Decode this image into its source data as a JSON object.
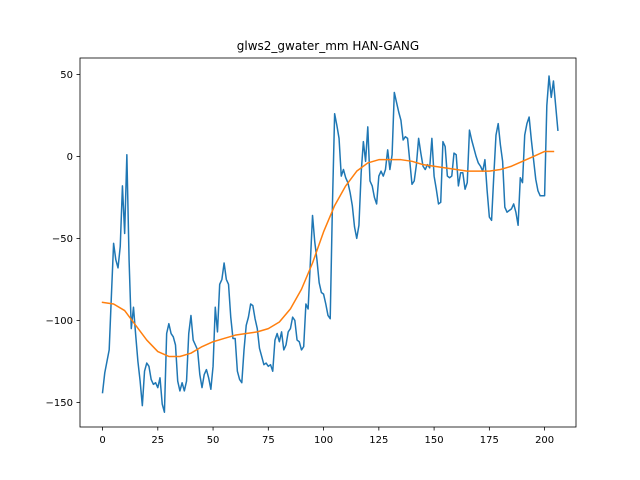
{
  "chart_data": {
    "type": "line",
    "title": "glws2_gwater_mm HAN-GANG",
    "xlabel": "",
    "ylabel": "",
    "xlim": [
      -10.2,
      214.2
    ],
    "ylim": [
      -165,
      60
    ],
    "x_ticks": [
      0,
      25,
      50,
      75,
      100,
      125,
      150,
      175,
      200
    ],
    "y_ticks": [
      -150,
      -100,
      -50,
      0,
      50
    ],
    "x_tick_labels": [
      "0",
      "25",
      "50",
      "75",
      "100",
      "125",
      "150",
      "175",
      "200"
    ],
    "y_tick_labels": [
      "−150",
      "−100",
      "−50",
      "0",
      "50"
    ],
    "grid": false,
    "legend": false,
    "series": [
      {
        "color": "#1f77b4",
        "points": [
          [
            0,
            -144
          ],
          [
            1,
            -132
          ],
          [
            2,
            -125
          ],
          [
            3,
            -118
          ],
          [
            4,
            -85
          ],
          [
            5,
            -53
          ],
          [
            6,
            -63
          ],
          [
            7,
            -68
          ],
          [
            8,
            -55
          ],
          [
            9,
            -18
          ],
          [
            10,
            -47
          ],
          [
            11,
            1
          ],
          [
            12,
            -63
          ],
          [
            13,
            -105
          ],
          [
            14,
            -92
          ],
          [
            15,
            -109
          ],
          [
            16,
            -125
          ],
          [
            17,
            -137
          ],
          [
            18,
            -152
          ],
          [
            19,
            -131
          ],
          [
            20,
            -126
          ],
          [
            21,
            -128
          ],
          [
            22,
            -136
          ],
          [
            23,
            -139
          ],
          [
            24,
            -138
          ],
          [
            25,
            -141
          ],
          [
            26,
            -135
          ],
          [
            27,
            -151
          ],
          [
            28,
            -156
          ],
          [
            29,
            -108
          ],
          [
            30,
            -102
          ],
          [
            31,
            -108
          ],
          [
            32,
            -110
          ],
          [
            33,
            -115
          ],
          [
            34,
            -137
          ],
          [
            35,
            -143
          ],
          [
            36,
            -138
          ],
          [
            37,
            -143
          ],
          [
            38,
            -137
          ],
          [
            39,
            -108
          ],
          [
            40,
            -97
          ],
          [
            41,
            -112
          ],
          [
            42,
            -115
          ],
          [
            43,
            -118
          ],
          [
            44,
            -133
          ],
          [
            45,
            -141
          ],
          [
            46,
            -133
          ],
          [
            47,
            -130
          ],
          [
            48,
            -135
          ],
          [
            49,
            -142
          ],
          [
            50,
            -128
          ],
          [
            51,
            -92
          ],
          [
            52,
            -107
          ],
          [
            53,
            -78
          ],
          [
            54,
            -75
          ],
          [
            55,
            -65
          ],
          [
            56,
            -75
          ],
          [
            57,
            -78
          ],
          [
            58,
            -98
          ],
          [
            59,
            -111
          ],
          [
            60,
            -111
          ],
          [
            61,
            -131
          ],
          [
            62,
            -136
          ],
          [
            63,
            -138
          ],
          [
            64,
            -118
          ],
          [
            65,
            -103
          ],
          [
            66,
            -98
          ],
          [
            67,
            -90
          ],
          [
            68,
            -91
          ],
          [
            69,
            -99
          ],
          [
            70,
            -105
          ],
          [
            71,
            -117
          ],
          [
            72,
            -122
          ],
          [
            73,
            -127
          ],
          [
            74,
            -126
          ],
          [
            75,
            -128
          ],
          [
            76,
            -127
          ],
          [
            77,
            -131
          ],
          [
            78,
            -112
          ],
          [
            79,
            -108
          ],
          [
            80,
            -113
          ],
          [
            81,
            -107
          ],
          [
            82,
            -118
          ],
          [
            83,
            -115
          ],
          [
            84,
            -107
          ],
          [
            85,
            -105
          ],
          [
            86,
            -98
          ],
          [
            87,
            -100
          ],
          [
            88,
            -112
          ],
          [
            89,
            -113
          ],
          [
            90,
            -118
          ],
          [
            91,
            -116
          ],
          [
            92,
            -90
          ],
          [
            93,
            -93
          ],
          [
            94,
            -65
          ],
          [
            95,
            -36
          ],
          [
            96,
            -52
          ],
          [
            97,
            -63
          ],
          [
            98,
            -77
          ],
          [
            99,
            -83
          ],
          [
            100,
            -84
          ],
          [
            101,
            -90
          ],
          [
            102,
            -97
          ],
          [
            103,
            -99
          ],
          [
            104,
            -30
          ],
          [
            105,
            26
          ],
          [
            106,
            19
          ],
          [
            107,
            11
          ],
          [
            108,
            -12
          ],
          [
            109,
            -8
          ],
          [
            110,
            -13
          ],
          [
            111,
            -16
          ],
          [
            112,
            -22
          ],
          [
            113,
            -30
          ],
          [
            114,
            -43
          ],
          [
            115,
            -50
          ],
          [
            116,
            -42
          ],
          [
            117,
            -10
          ],
          [
            118,
            9
          ],
          [
            119,
            -3
          ],
          [
            120,
            18
          ],
          [
            121,
            -15
          ],
          [
            122,
            -18
          ],
          [
            123,
            -25
          ],
          [
            124,
            -29
          ],
          [
            125,
            -12
          ],
          [
            126,
            -9
          ],
          [
            127,
            -12
          ],
          [
            128,
            -8
          ],
          [
            129,
            4
          ],
          [
            130,
            -8
          ],
          [
            131,
            1
          ],
          [
            132,
            39
          ],
          [
            133,
            33
          ],
          [
            134,
            27
          ],
          [
            135,
            22
          ],
          [
            136,
            10
          ],
          [
            137,
            12
          ],
          [
            138,
            11
          ],
          [
            139,
            -3
          ],
          [
            140,
            -17
          ],
          [
            141,
            -15
          ],
          [
            142,
            -5
          ],
          [
            143,
            11
          ],
          [
            144,
            2
          ],
          [
            145,
            -6
          ],
          [
            146,
            -8
          ],
          [
            147,
            -5
          ],
          [
            148,
            -7
          ],
          [
            149,
            11
          ],
          [
            150,
            -12
          ],
          [
            151,
            -20
          ],
          [
            152,
            -29
          ],
          [
            153,
            -28
          ],
          [
            154,
            9
          ],
          [
            155,
            6
          ],
          [
            156,
            -12
          ],
          [
            157,
            -13
          ],
          [
            158,
            -12
          ],
          [
            159,
            2
          ],
          [
            160,
            1
          ],
          [
            161,
            -18
          ],
          [
            162,
            -10
          ],
          [
            163,
            -10
          ],
          [
            164,
            -20
          ],
          [
            165,
            -16
          ],
          [
            166,
            16
          ],
          [
            167,
            10
          ],
          [
            168,
            5
          ],
          [
            169,
            0
          ],
          [
            170,
            -4
          ],
          [
            171,
            -6
          ],
          [
            172,
            -9
          ],
          [
            173,
            -2
          ],
          [
            174,
            -21
          ],
          [
            175,
            -37
          ],
          [
            176,
            -39
          ],
          [
            177,
            -12
          ],
          [
            178,
            13
          ],
          [
            179,
            20
          ],
          [
            180,
            7
          ],
          [
            181,
            -3
          ],
          [
            182,
            -31
          ],
          [
            183,
            -34
          ],
          [
            184,
            -33
          ],
          [
            185,
            -32
          ],
          [
            186,
            -29
          ],
          [
            187,
            -34
          ],
          [
            188,
            -42
          ],
          [
            189,
            -13
          ],
          [
            190,
            -16
          ],
          [
            191,
            13
          ],
          [
            192,
            20
          ],
          [
            193,
            24
          ],
          [
            194,
            10
          ],
          [
            195,
            -2
          ],
          [
            196,
            -14
          ],
          [
            197,
            -21
          ],
          [
            198,
            -24
          ],
          [
            199,
            -24
          ],
          [
            200,
            -24
          ],
          [
            201,
            31
          ],
          [
            202,
            49
          ],
          [
            203,
            36
          ],
          [
            204,
            46
          ],
          [
            205,
            31
          ],
          [
            206,
            16
          ]
        ]
      },
      {
        "color": "#ff7f0e",
        "points": [
          [
            0,
            -89
          ],
          [
            5,
            -90
          ],
          [
            10,
            -94
          ],
          [
            15,
            -103
          ],
          [
            20,
            -112
          ],
          [
            25,
            -119
          ],
          [
            30,
            -122
          ],
          [
            35,
            -122
          ],
          [
            40,
            -120
          ],
          [
            45,
            -116
          ],
          [
            50,
            -113
          ],
          [
            55,
            -111
          ],
          [
            60,
            -109
          ],
          [
            65,
            -108
          ],
          [
            70,
            -107
          ],
          [
            75,
            -105
          ],
          [
            80,
            -101
          ],
          [
            85,
            -93
          ],
          [
            90,
            -81
          ],
          [
            95,
            -65
          ],
          [
            100,
            -46
          ],
          [
            105,
            -30
          ],
          [
            110,
            -18
          ],
          [
            115,
            -9
          ],
          [
            120,
            -4
          ],
          [
            125,
            -2
          ],
          [
            130,
            -2
          ],
          [
            135,
            -2
          ],
          [
            140,
            -3
          ],
          [
            145,
            -5
          ],
          [
            150,
            -6
          ],
          [
            155,
            -7
          ],
          [
            160,
            -8
          ],
          [
            165,
            -9
          ],
          [
            170,
            -9
          ],
          [
            175,
            -9
          ],
          [
            180,
            -8
          ],
          [
            185,
            -6
          ],
          [
            190,
            -3
          ],
          [
            195,
            0
          ],
          [
            200,
            3
          ],
          [
            204,
            3
          ]
        ]
      }
    ]
  }
}
